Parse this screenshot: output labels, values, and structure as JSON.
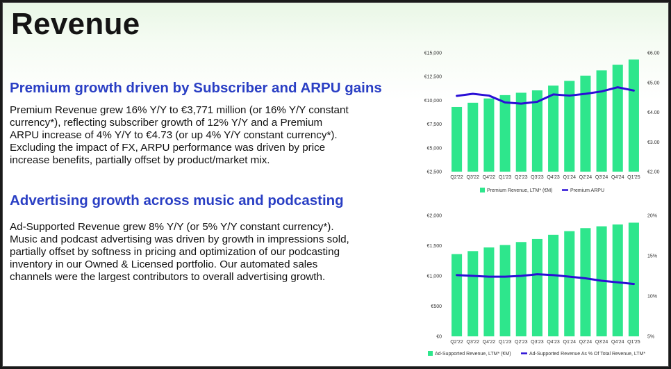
{
  "page": {
    "title": "Revenue",
    "section1": {
      "heading": "Premium growth driven by Subscriber and ARPU gains",
      "lines": [
        "Premium Revenue grew 16% Y/Y to €3,771 million (or 16% Y/Y constant",
        "currency*), reflecting subscriber growth of 12% Y/Y and a Premium",
        "ARPU increase of 4% Y/Y to €4.73 (or up 4% Y/Y constant currency*).",
        "Excluding the impact of FX, ARPU performance was driven by price",
        "increase benefits, partially offset by product/market mix."
      ]
    },
    "section2": {
      "heading": "Advertising growth across music and podcasting",
      "lines": [
        "Ad-Supported Revenue grew 8% Y/Y (or 5% Y/Y constant currency*).",
        "Music and podcast advertising was driven by growth in impressions sold,",
        "partially offset by softness in pricing and optimization of our podcasting",
        "inventory in our Owned & Licensed portfolio. Our automated sales",
        "channels were the largest contributors to overall advertising growth."
      ]
    }
  },
  "colors": {
    "bar": "#2ee68c",
    "line": "#2a0fd6",
    "heading": "#2a3fc4"
  },
  "chart_data": [
    {
      "type": "bar",
      "categories": [
        "Q2'22",
        "Q3'22",
        "Q4'22",
        "Q1'23",
        "Q2'23",
        "Q3'23",
        "Q4'23",
        "Q1'24",
        "Q2'24",
        "Q3'24",
        "Q4'24",
        "Q1'25"
      ],
      "ylim": [
        2500,
        15000
      ],
      "y2lim": [
        2.0,
        6.0
      ],
      "yticks": [
        "€2,500",
        "€5,000",
        "€7,500",
        "€10,000",
        "€12,500",
        "€15,000"
      ],
      "y2ticks": [
        "€2.00",
        "€3.00",
        "€4.00",
        "€5.00",
        "€6.00"
      ],
      "series": [
        {
          "name": "Premium Revenue, LTM* (€M)",
          "type": "bar",
          "axis": "left",
          "values": [
            9300,
            9750,
            10200,
            10550,
            10800,
            11050,
            11550,
            12050,
            12600,
            13150,
            13750,
            14300
          ]
        },
        {
          "name": "Premium ARPU",
          "type": "line",
          "axis": "right",
          "values": [
            4.55,
            4.62,
            4.56,
            4.33,
            4.29,
            4.35,
            4.6,
            4.56,
            4.62,
            4.7,
            4.84,
            4.73
          ]
        }
      ]
    },
    {
      "type": "bar",
      "categories": [
        "Q2'22",
        "Q3'22",
        "Q4'22",
        "Q1'23",
        "Q2'23",
        "Q3'23",
        "Q4'23",
        "Q1'24",
        "Q2'24",
        "Q3'24",
        "Q4'24",
        "Q1'25"
      ],
      "ylim": [
        0,
        2000
      ],
      "y2lim": [
        5,
        20
      ],
      "yticks": [
        "€0",
        "€500",
        "€1,000",
        "€1,500",
        "€2,000"
      ],
      "y2ticks": [
        "5%",
        "10%",
        "15%",
        "20%"
      ],
      "series": [
        {
          "name": "Ad-Supported Revenue, LTM* (€M)",
          "type": "bar",
          "axis": "left",
          "values": [
            1360,
            1410,
            1470,
            1510,
            1560,
            1610,
            1680,
            1740,
            1790,
            1820,
            1850,
            1880
          ]
        },
        {
          "name": "Ad-Supported Revenue As % Of Total Revenue, LTM*",
          "type": "line",
          "axis": "right",
          "values": [
            12.6,
            12.5,
            12.4,
            12.4,
            12.5,
            12.7,
            12.6,
            12.4,
            12.2,
            11.9,
            11.7,
            11.5
          ]
        }
      ]
    }
  ]
}
